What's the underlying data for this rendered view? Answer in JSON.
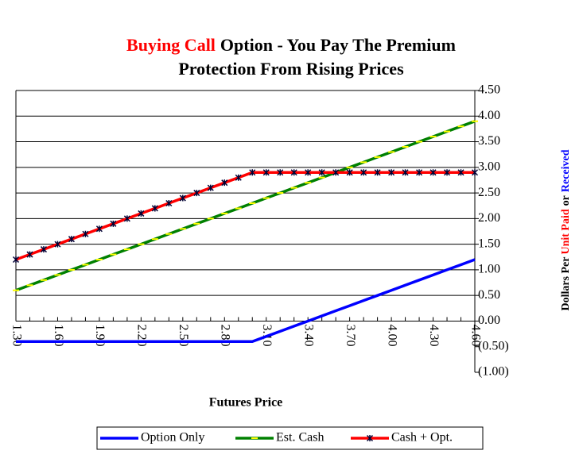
{
  "chart_data": {
    "type": "line",
    "title_runs": [
      {
        "text": "Buying Call",
        "color": "#ff0000"
      },
      {
        "text": "Option - You Pay The Premium",
        "color": "#000000"
      }
    ],
    "subtitle": "Protection From Rising Prices",
    "x_label": "Futures Price",
    "y_label_runs": [
      {
        "text": "Dollars Per",
        "color": "#000000"
      },
      {
        "text": "Unit Paid",
        "color": "#ff0000"
      },
      {
        "text": "or",
        "color": "#000000"
      },
      {
        "text": "Received",
        "color": "#0000ff"
      }
    ],
    "categories": [
      "1.30",
      null,
      null,
      "1.60",
      null,
      null,
      "1.90",
      null,
      null,
      "2.20",
      null,
      null,
      "2.50",
      null,
      null,
      "2.80",
      null,
      null,
      "3.10",
      null,
      null,
      "3.40",
      null,
      null,
      "3.70",
      null,
      null,
      "4.00",
      null,
      null,
      "4.30",
      null,
      null,
      "4.60"
    ],
    "ylim": [
      -1,
      4.5
    ],
    "yticks": [
      {
        "value": -1,
        "label": "(1.00)"
      },
      {
        "value": -0.5,
        "label": "(0.50)"
      },
      {
        "value": 0,
        "label": "0.00"
      },
      {
        "value": 0.5,
        "label": "0.50"
      },
      {
        "value": 1,
        "label": "1.00"
      },
      {
        "value": 1.5,
        "label": "1.50"
      },
      {
        "value": 2,
        "label": "2.00"
      },
      {
        "value": 2.5,
        "label": "2.50"
      },
      {
        "value": 3,
        "label": "3.00"
      },
      {
        "value": 3.5,
        "label": "3.50"
      },
      {
        "value": 4,
        "label": "4.00"
      },
      {
        "value": 4.5,
        "label": "4.50"
      }
    ],
    "negative_label_color": "#ff0000",
    "grid": true,
    "legend": "bottom",
    "series": [
      {
        "name": "Option Only",
        "color": "#0000ff",
        "marker": "none",
        "values": [
          -0.4,
          -0.4,
          -0.4,
          -0.4,
          -0.4,
          -0.4,
          -0.4,
          -0.4,
          -0.4,
          -0.4,
          -0.4,
          -0.4,
          -0.4,
          -0.4,
          -0.4,
          -0.4,
          -0.4,
          -0.4,
          -0.3,
          -0.2,
          -0.1,
          0,
          0.1,
          0.2,
          0.3,
          0.4,
          0.5,
          0.6,
          0.7,
          0.8,
          0.9,
          1.0,
          1.1,
          1.2
        ]
      },
      {
        "name": "Est. Cash",
        "color": "#008000",
        "marker": "dash",
        "marker_color": "#ffff00",
        "values": [
          0.6,
          0.7,
          0.8,
          0.9,
          1.0,
          1.1,
          1.2,
          1.3,
          1.4,
          1.5,
          1.6,
          1.7,
          1.8,
          1.9,
          2.0,
          2.1,
          2.2,
          2.3,
          2.4,
          2.5,
          2.6,
          2.7,
          2.8,
          2.9,
          3.0,
          3.1,
          3.2,
          3.3,
          3.4,
          3.5,
          3.6,
          3.7,
          3.8,
          3.9
        ]
      },
      {
        "name": "Cash + Opt.",
        "color": "#ff0000",
        "marker": "star",
        "marker_color": "#000033",
        "values": [
          1.2,
          1.3,
          1.4,
          1.5,
          1.6,
          1.7,
          1.8,
          1.9,
          2.0,
          2.1,
          2.2,
          2.3,
          2.4,
          2.5,
          2.6,
          2.7,
          2.8,
          2.9,
          2.9,
          2.9,
          2.9,
          2.9,
          2.9,
          2.9,
          2.9,
          2.9,
          2.9,
          2.9,
          2.9,
          2.9,
          2.9,
          2.9,
          2.9,
          2.9
        ]
      }
    ]
  }
}
